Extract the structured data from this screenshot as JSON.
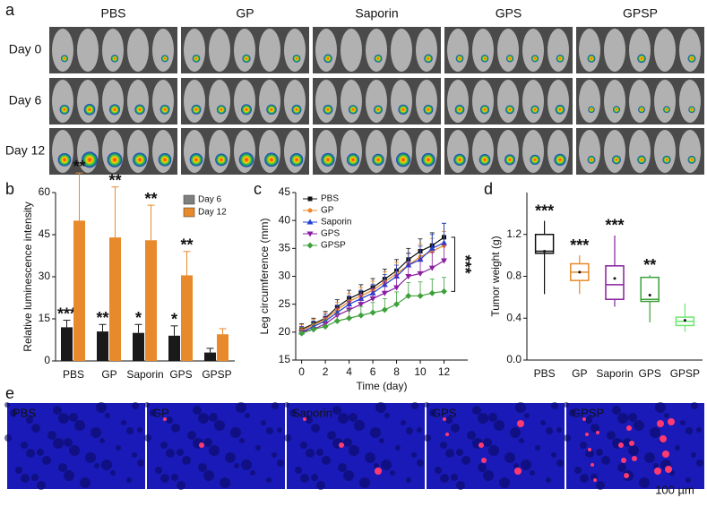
{
  "panel_labels": [
    "a",
    "b",
    "c",
    "d",
    "e"
  ],
  "panel_a": {
    "groups": [
      "PBS",
      "GP",
      "Saporin",
      "GPS",
      "GPSP"
    ],
    "rows": [
      "Day 0",
      "Day 6",
      "Day 12"
    ]
  },
  "chart_data": [
    {
      "type": "bar",
      "ylabel": "Relative luminescence intensity",
      "categories": [
        "PBS",
        "GP",
        "Saporin",
        "GPS",
        "GPSP"
      ],
      "ylim": [
        0,
        60
      ],
      "yticks": [
        0,
        15,
        30,
        45,
        60
      ],
      "series": [
        {
          "name": "Day 6",
          "color": "#1a1a1a",
          "legend_color": "#7f7f7f",
          "values": [
            12,
            10.5,
            10,
            9,
            3
          ],
          "errors": [
            2.5,
            2.5,
            3,
            3.5,
            1.5
          ],
          "annotations": [
            "***",
            "**",
            "*",
            "*",
            null
          ]
        },
        {
          "name": "Day 12",
          "color": "#e8892b",
          "values": [
            50,
            44,
            43,
            30.5,
            9.5
          ],
          "errors": [
            17,
            18,
            12.5,
            8.5,
            2
          ],
          "annotations": [
            "**",
            "**",
            "**",
            "**",
            null
          ]
        }
      ],
      "legend": "upper right"
    },
    {
      "type": "line",
      "xlabel": "Time (day)",
      "ylabel": "Leg circumference (mm)",
      "x": [
        0,
        1,
        2,
        3,
        4,
        5,
        6,
        7,
        8,
        9,
        10,
        11,
        12
      ],
      "xlim": [
        -0.5,
        14
      ],
      "xticks": [
        0,
        2,
        4,
        6,
        8,
        10,
        12
      ],
      "ylim": [
        15,
        45
      ],
      "yticks": [
        15,
        20,
        25,
        30,
        35,
        40,
        45
      ],
      "series": [
        {
          "name": "PBS",
          "color": "#111111",
          "marker": "square",
          "values": [
            20.5,
            21.5,
            22.5,
            24.5,
            26,
            27,
            28,
            29.5,
            31,
            33,
            34.5,
            35.5,
            37
          ],
          "errors": [
            1,
            1,
            1.2,
            1.3,
            1.5,
            1.5,
            1.6,
            1.8,
            2,
            2,
            2.2,
            2.3,
            2.5
          ]
        },
        {
          "name": "GP",
          "color": "#e8892b",
          "marker": "circle",
          "values": [
            20.3,
            21.3,
            22.3,
            24,
            25.5,
            26.5,
            27.5,
            29,
            30.5,
            32,
            33.5,
            34.5,
            35.5
          ],
          "errors": [
            1,
            1,
            1.2,
            1.3,
            1.4,
            1.5,
            1.6,
            1.8,
            2,
            2,
            2.2,
            2.3,
            2.5
          ]
        },
        {
          "name": "Saporin",
          "color": "#2040d0",
          "marker": "triangle",
          "values": [
            20,
            21,
            22,
            23.5,
            25,
            26,
            27,
            28.5,
            30,
            32,
            33,
            35,
            36
          ],
          "errors": [
            1,
            1,
            1.2,
            1.3,
            1.5,
            1.5,
            1.6,
            1.8,
            2,
            2.2,
            2.4,
            2.5,
            3.5
          ]
        },
        {
          "name": "GPS",
          "color": "#8a1ea0",
          "marker": "triangle-down",
          "values": [
            20,
            20.5,
            21.5,
            23,
            24,
            25,
            26,
            27,
            28,
            30,
            30.5,
            31.5,
            32.8
          ],
          "errors": [
            1,
            1,
            1.2,
            1.3,
            1.5,
            1.6,
            1.8,
            2,
            2.2,
            2.4,
            2.6,
            2.8,
            3
          ]
        },
        {
          "name": "GPSP",
          "color": "#3ea03a",
          "marker": "diamond",
          "values": [
            19.8,
            20.5,
            21,
            22,
            22.5,
            23,
            23.5,
            24,
            25,
            26.5,
            26.5,
            27,
            27.3
          ],
          "errors": [
            1,
            1,
            1.2,
            1.3,
            1.5,
            1.6,
            1.8,
            2,
            2.2,
            2.4,
            2.5,
            2.5,
            2.5
          ]
        }
      ],
      "legend": "upper left",
      "annotation": "***"
    },
    {
      "type": "box",
      "ylabel": "Tumor weight (g)",
      "categories": [
        "PBS",
        "GP",
        "Saporin",
        "GPS",
        "GPSP"
      ],
      "colors": [
        "#111111",
        "#e8892b",
        "#8a1ea0",
        "#3ea03a",
        "#6ee66e"
      ],
      "ylim": [
        0,
        1.6
      ],
      "yticks": [
        {
          "value": 0,
          "label": "0.0"
        },
        0.4,
        0.8,
        1.2
      ],
      "min": [
        0.63,
        0.63,
        0.51,
        0.36,
        0.27
      ],
      "q1": [
        1.02,
        0.76,
        0.58,
        0.56,
        0.33
      ],
      "median": [
        1.04,
        0.84,
        0.72,
        0.58,
        0.37
      ],
      "q3": [
        1.2,
        0.92,
        0.9,
        0.79,
        0.41
      ],
      "max": [
        1.33,
        1.0,
        1.19,
        0.81,
        0.54
      ],
      "mean": [
        1.04,
        0.84,
        0.78,
        0.62,
        0.38
      ],
      "annotations": [
        "***",
        "***",
        "***",
        "**",
        null
      ]
    }
  ],
  "panel_e": {
    "groups": [
      "PBS",
      "GP",
      "Saporin",
      "GPS",
      "GPSP"
    ],
    "scale_bar": "100 µm"
  }
}
